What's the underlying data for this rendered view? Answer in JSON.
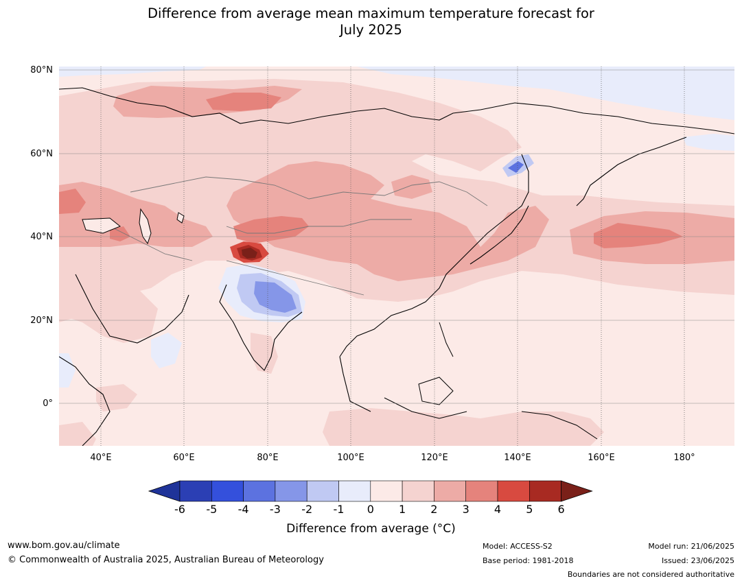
{
  "title": {
    "line1": "Difference from average mean maximum temperature forecast for",
    "line2": "July 2025"
  },
  "map": {
    "lat_labels": [
      "80°N",
      "60°N",
      "40°N",
      "20°N",
      "0°"
    ],
    "lon_labels": [
      "40°E",
      "60°E",
      "80°E",
      "100°E",
      "120°E",
      "140°E",
      "160°E",
      "180°"
    ],
    "region": "Asia",
    "ocean_fill": "#fceae7"
  },
  "colorbar": {
    "ticks": [
      "-6",
      "-5",
      "-4",
      "-3",
      "-2",
      "-1",
      "0",
      "1",
      "2",
      "3",
      "4",
      "5",
      "6"
    ],
    "colors": [
      "#1f3399",
      "#2b3fb4",
      "#3450dc",
      "#5c72e0",
      "#8596e8",
      "#c0c9f3",
      "#e8ecfb",
      "#fceae7",
      "#f5d3d0",
      "#edaba6",
      "#e5837c",
      "#d84a40",
      "#a82a22",
      "#7a2019"
    ],
    "label": "Difference from average (°C)"
  },
  "footer": {
    "url": "www.bom.gov.au/climate",
    "copyright": "© Commonwealth of Australia 2025, Australian Bureau of Meteorology",
    "model": "Model: ACCESS-S2",
    "base_period": "Base period: 1981-2018",
    "model_run": "Model run: 21/06/2025",
    "issued": "Issued: 23/06/2025",
    "disclaimer": "Boundaries are not considered authoritative"
  }
}
